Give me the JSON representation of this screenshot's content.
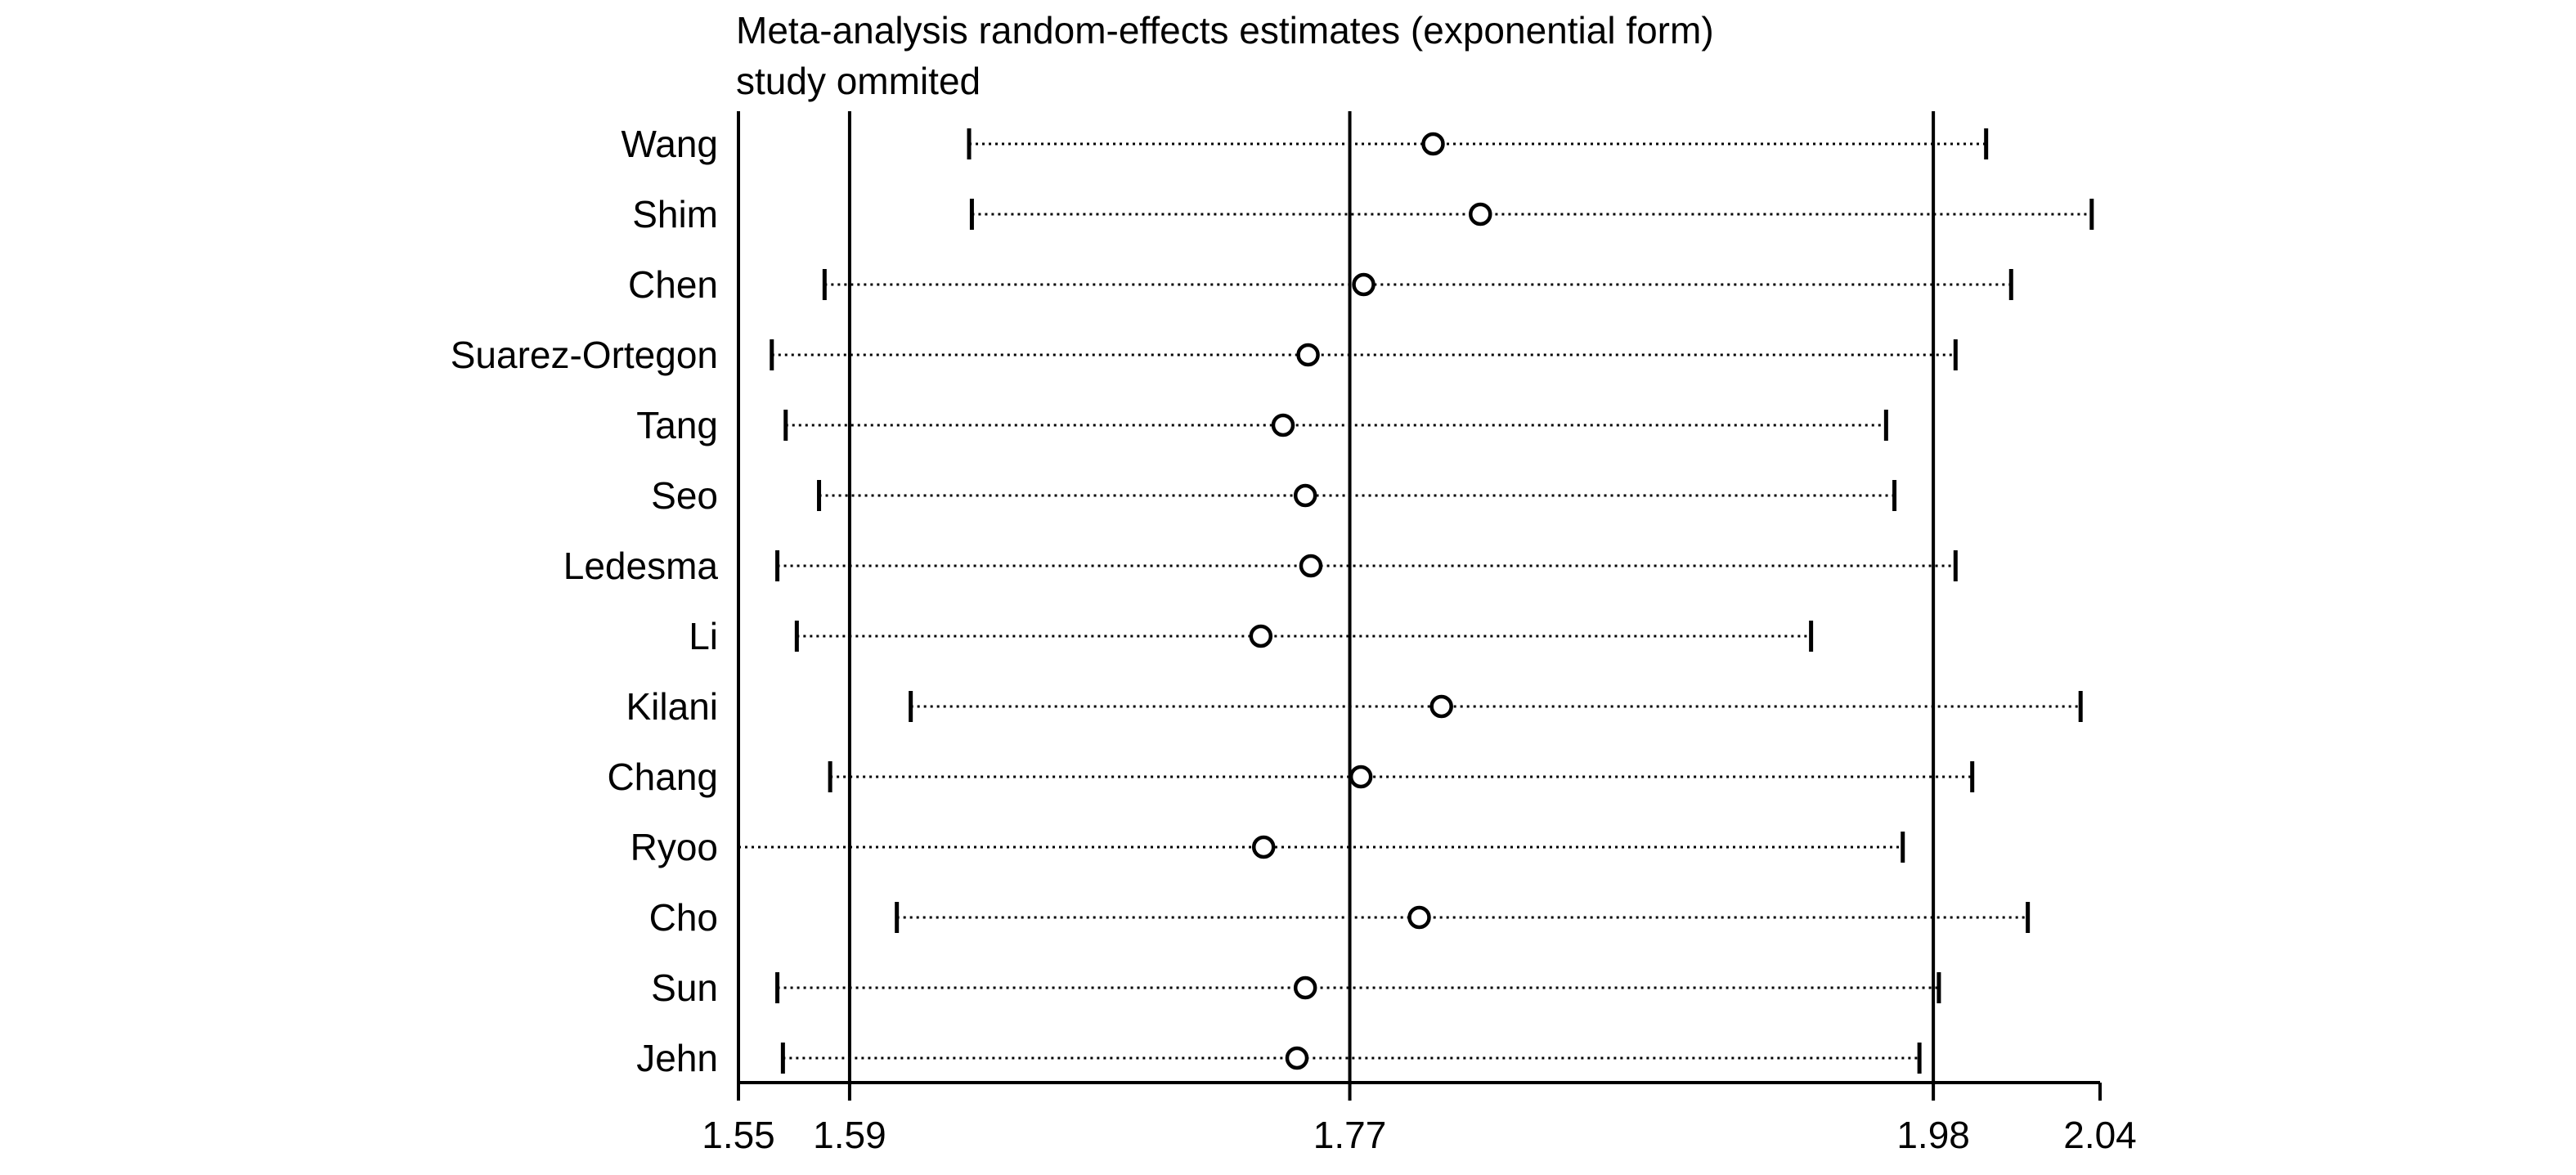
{
  "chart_data": {
    "type": "scatter",
    "title": "Meta-analysis random-effects estimates (exponential form)",
    "subtitle": "study ommited",
    "xlabel": "",
    "ylabel": "",
    "xlim": [
      1.55,
      2.04
    ],
    "x_ticks": [
      {
        "value": 1.55,
        "label": "1.55"
      },
      {
        "value": 1.59,
        "label": "1.59"
      },
      {
        "value": 1.77,
        "label": "1.77"
      },
      {
        "value": 1.98,
        "label": "1.98"
      },
      {
        "value": 2.04,
        "label": "2.04"
      }
    ],
    "reference_lines": [
      1.59,
      1.77,
      1.98
    ],
    "studies": [
      {
        "name": "Wang",
        "estimate": 1.8,
        "lower": 1.633,
        "upper": 1.999
      },
      {
        "name": "Shim",
        "estimate": 1.817,
        "lower": 1.634,
        "upper": 2.037
      },
      {
        "name": "Chen",
        "estimate": 1.775,
        "lower": 1.581,
        "upper": 2.008
      },
      {
        "name": "Suarez-Ortegon",
        "estimate": 1.755,
        "lower": 1.562,
        "upper": 1.988
      },
      {
        "name": "Tang",
        "estimate": 1.746,
        "lower": 1.567,
        "upper": 1.963
      },
      {
        "name": "Seo",
        "estimate": 1.754,
        "lower": 1.579,
        "upper": 1.966
      },
      {
        "name": "Ledesma",
        "estimate": 1.756,
        "lower": 1.564,
        "upper": 1.988
      },
      {
        "name": "Li",
        "estimate": 1.738,
        "lower": 1.571,
        "upper": 1.936
      },
      {
        "name": "Kilani",
        "estimate": 1.803,
        "lower": 1.612,
        "upper": 2.033
      },
      {
        "name": "Chang",
        "estimate": 1.774,
        "lower": 1.583,
        "upper": 1.994
      },
      {
        "name": "Ryoo",
        "estimate": 1.739,
        "lower": 1.55,
        "upper": 1.969
      },
      {
        "name": "Cho",
        "estimate": 1.795,
        "lower": 1.607,
        "upper": 2.014
      },
      {
        "name": "Sun",
        "estimate": 1.754,
        "lower": 1.564,
        "upper": 1.982
      },
      {
        "name": "Jehn",
        "estimate": 1.751,
        "lower": 1.566,
        "upper": 1.975
      }
    ]
  }
}
